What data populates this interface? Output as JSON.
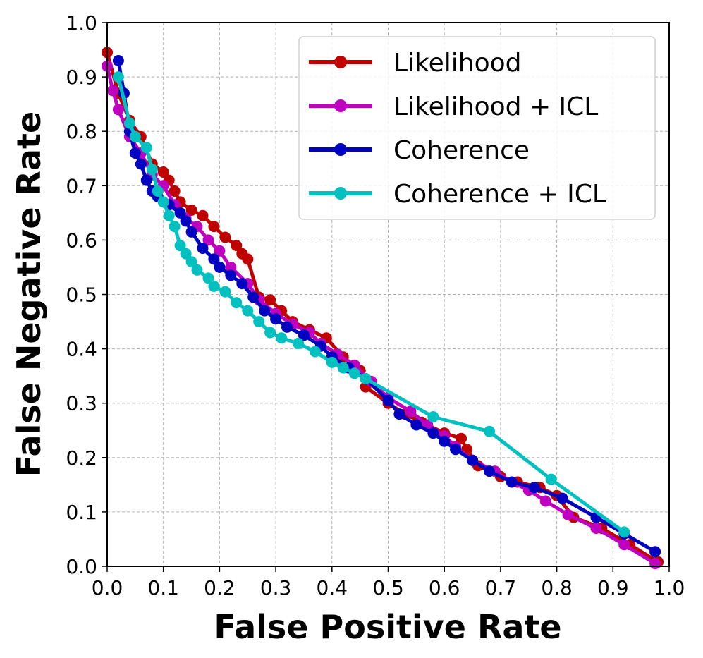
{
  "chart_data": {
    "type": "line",
    "title": "",
    "xlabel": "False Positive Rate",
    "ylabel": "False Negative Rate",
    "xlim": [
      0.0,
      1.0
    ],
    "ylim": [
      0.0,
      1.0
    ],
    "grid": true,
    "legend_position": "top-right",
    "xticks": [
      "0.0",
      "0.1",
      "0.2",
      "0.3",
      "0.4",
      "0.5",
      "0.6",
      "0.7",
      "0.8",
      "0.9",
      "1.0"
    ],
    "yticks": [
      "0.0",
      "0.1",
      "0.2",
      "0.3",
      "0.4",
      "0.5",
      "0.6",
      "0.7",
      "0.8",
      "0.9",
      "1.0"
    ],
    "series": [
      {
        "name": "Likelihood",
        "color": "#c00000",
        "x": [
          0.0,
          0.02,
          0.04,
          0.06,
          0.08,
          0.1,
          0.11,
          0.12,
          0.13,
          0.15,
          0.17,
          0.19,
          0.21,
          0.23,
          0.24,
          0.25,
          0.27,
          0.29,
          0.31,
          0.33,
          0.36,
          0.39,
          0.42,
          0.45,
          0.46,
          0.5,
          0.53,
          0.56,
          0.6,
          0.63,
          0.64,
          0.66,
          0.7,
          0.73,
          0.77,
          0.8,
          0.83,
          0.88,
          0.93,
          0.98
        ],
        "y": [
          0.945,
          0.87,
          0.82,
          0.79,
          0.74,
          0.725,
          0.71,
          0.69,
          0.67,
          0.655,
          0.645,
          0.625,
          0.605,
          0.59,
          0.575,
          0.565,
          0.495,
          0.49,
          0.47,
          0.45,
          0.435,
          0.42,
          0.385,
          0.36,
          0.33,
          0.3,
          0.28,
          0.265,
          0.245,
          0.235,
          0.215,
          0.185,
          0.165,
          0.155,
          0.145,
          0.13,
          0.09,
          0.07,
          0.04,
          0.008
        ]
      },
      {
        "name": "Likelihood + ICL",
        "color": "#c000c0",
        "x": [
          0.0,
          0.01,
          0.02,
          0.04,
          0.06,
          0.08,
          0.1,
          0.12,
          0.14,
          0.16,
          0.18,
          0.2,
          0.22,
          0.25,
          0.27,
          0.3,
          0.33,
          0.36,
          0.38,
          0.41,
          0.44,
          0.47,
          0.5,
          0.54,
          0.57,
          0.6,
          0.62,
          0.65,
          0.69,
          0.72,
          0.75,
          0.78,
          0.82,
          0.87,
          0.92,
          0.975
        ],
        "y": [
          0.92,
          0.875,
          0.84,
          0.79,
          0.76,
          0.72,
          0.7,
          0.665,
          0.64,
          0.625,
          0.6,
          0.58,
          0.55,
          0.52,
          0.49,
          0.465,
          0.445,
          0.43,
          0.41,
          0.39,
          0.37,
          0.34,
          0.31,
          0.285,
          0.26,
          0.24,
          0.22,
          0.195,
          0.175,
          0.155,
          0.14,
          0.12,
          0.095,
          0.07,
          0.04,
          0.005
        ]
      },
      {
        "name": "Coherence",
        "color": "#0000c0",
        "x": [
          0.02,
          0.03,
          0.04,
          0.05,
          0.06,
          0.07,
          0.08,
          0.09,
          0.11,
          0.13,
          0.14,
          0.15,
          0.17,
          0.19,
          0.2,
          0.22,
          0.24,
          0.26,
          0.28,
          0.3,
          0.32,
          0.35,
          0.38,
          0.4,
          0.43,
          0.46,
          0.5,
          0.52,
          0.55,
          0.58,
          0.6,
          0.62,
          0.65,
          0.68,
          0.72,
          0.76,
          0.81,
          0.87,
          0.92,
          0.975
        ],
        "y": [
          0.93,
          0.87,
          0.8,
          0.76,
          0.74,
          0.71,
          0.69,
          0.68,
          0.665,
          0.65,
          0.635,
          0.615,
          0.585,
          0.565,
          0.55,
          0.535,
          0.52,
          0.495,
          0.47,
          0.455,
          0.44,
          0.425,
          0.405,
          0.385,
          0.365,
          0.345,
          0.305,
          0.28,
          0.26,
          0.245,
          0.23,
          0.215,
          0.195,
          0.175,
          0.155,
          0.145,
          0.125,
          0.09,
          0.06,
          0.027
        ]
      },
      {
        "name": "Coherence + ICL",
        "color": "#00c0c0",
        "x": [
          0.02,
          0.04,
          0.05,
          0.07,
          0.08,
          0.09,
          0.1,
          0.11,
          0.12,
          0.13,
          0.14,
          0.15,
          0.16,
          0.18,
          0.19,
          0.21,
          0.23,
          0.25,
          0.27,
          0.29,
          0.31,
          0.34,
          0.37,
          0.4,
          0.42,
          0.44,
          0.46,
          0.58,
          0.68,
          0.79,
          0.92
        ],
        "y": [
          0.9,
          0.815,
          0.79,
          0.77,
          0.73,
          0.69,
          0.67,
          0.645,
          0.625,
          0.59,
          0.575,
          0.56,
          0.545,
          0.53,
          0.515,
          0.505,
          0.485,
          0.47,
          0.45,
          0.43,
          0.42,
          0.41,
          0.395,
          0.375,
          0.365,
          0.355,
          0.345,
          0.275,
          0.248,
          0.16,
          0.063
        ]
      }
    ]
  }
}
